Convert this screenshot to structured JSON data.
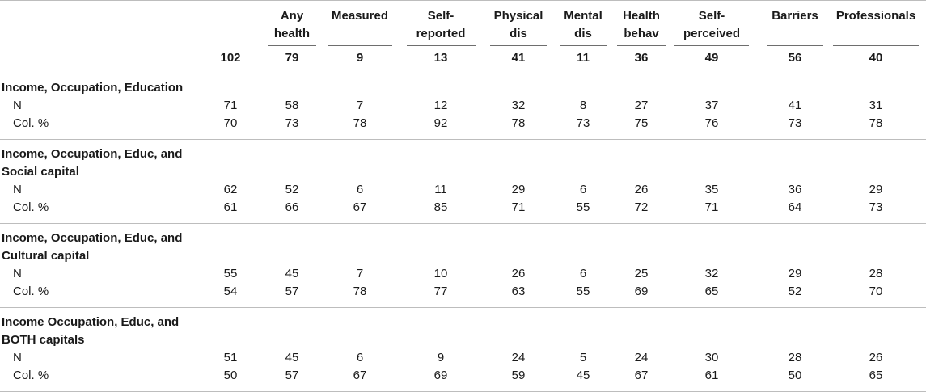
{
  "columns": [
    {
      "label": "",
      "count": "102"
    },
    {
      "label": "Any health",
      "count": "79"
    },
    {
      "label": "Measured",
      "count": "9"
    },
    {
      "label": "Self-reported",
      "count": "13"
    },
    {
      "label": "Physical dis",
      "count": "41"
    },
    {
      "label": "Mental dis",
      "count": "11"
    },
    {
      "label": "Health behav",
      "count": "36"
    },
    {
      "label": "Self-perceived",
      "count": "49"
    },
    {
      "label": "Barriers",
      "count": "56"
    },
    {
      "label": "Professionals",
      "count": "40"
    }
  ],
  "sections": [
    {
      "title": "Income, Occupation, Education",
      "rows": [
        {
          "label": "N",
          "values": [
            "71",
            "58",
            "7",
            "12",
            "32",
            "8",
            "27",
            "37",
            "41",
            "31"
          ]
        },
        {
          "label": "Col. %",
          "values": [
            "70",
            "73",
            "78",
            "92",
            "78",
            "73",
            "75",
            "76",
            "73",
            "78"
          ]
        }
      ]
    },
    {
      "title": "Income, Occupation, Educ, and Social capital",
      "rows": [
        {
          "label": "N",
          "values": [
            "62",
            "52",
            "6",
            "11",
            "29",
            "6",
            "26",
            "35",
            "36",
            "29"
          ]
        },
        {
          "label": "Col. %",
          "values": [
            "61",
            "66",
            "67",
            "85",
            "71",
            "55",
            "72",
            "71",
            "64",
            "73"
          ]
        }
      ]
    },
    {
      "title": "Income, Occupation, Educ, and Cultural capital",
      "rows": [
        {
          "label": "N",
          "values": [
            "55",
            "45",
            "7",
            "10",
            "26",
            "6",
            "25",
            "32",
            "29",
            "28"
          ]
        },
        {
          "label": "Col. %",
          "values": [
            "54",
            "57",
            "78",
            "77",
            "63",
            "55",
            "69",
            "65",
            "52",
            "70"
          ]
        }
      ]
    },
    {
      "title": "Income Occupation, Educ, and BOTH capitals",
      "rows": [
        {
          "label": "N",
          "values": [
            "51",
            "45",
            "6",
            "9",
            "24",
            "5",
            "24",
            "30",
            "28",
            "26"
          ]
        },
        {
          "label": "Col. %",
          "values": [
            "50",
            "57",
            "67",
            "69",
            "59",
            "45",
            "67",
            "61",
            "50",
            "65"
          ]
        }
      ]
    }
  ]
}
